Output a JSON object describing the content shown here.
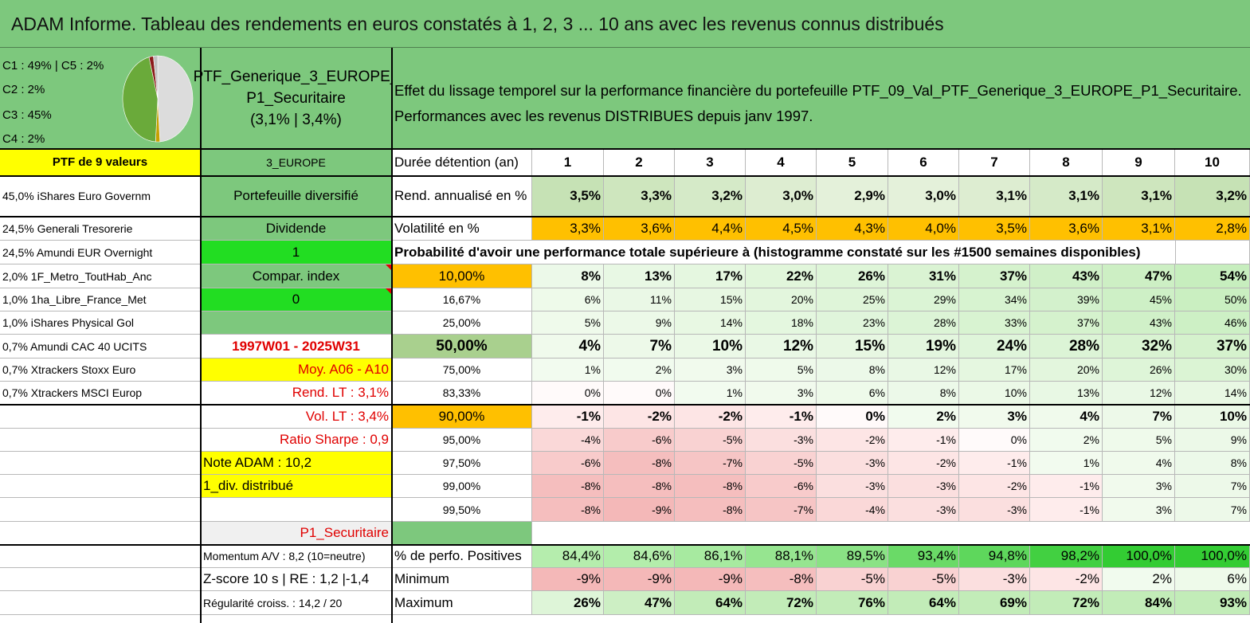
{
  "title": "ADAM Informe. Tableau des rendements en euros constatés à 1, 2, 3 ... 10 ans avec les revenus connus distribués",
  "pie": {
    "labels": [
      "C1 : 49% | C5 : 2%",
      "C2 : 2%",
      "C3 : 45%",
      "C4 : 2%"
    ],
    "slices": [
      {
        "value": 49,
        "color": "#dcdcdc"
      },
      {
        "value": 2,
        "color": "#c8a000"
      },
      {
        "value": 45,
        "color": "#6aaa3a"
      },
      {
        "value": 2,
        "color": "#8b1a1a"
      },
      {
        "value": 2,
        "color": "#c0c0c0"
      }
    ]
  },
  "portfolio": {
    "name_line1": "PTF_Generique_3_EUROPE_",
    "name_line2": "P1_Securitaire",
    "name_line3": "(3,1% | 3,4%)"
  },
  "description": {
    "line1": "Effet du lissage temporel sur la performance financière du portefeuille PTF_09_Val_PTF_Generique_3_EUROPE_P1_Securitaire.",
    "line2": "Performances avec les revenus DISTRIBUES depuis janv 1997."
  },
  "left_col": [
    "PTF de 9 valeurs",
    "45,0% iShares Euro Governm",
    "24,5% Generali Tresorerie",
    "24,5% Amundi EUR Overnight",
    "2,0% 1F_Metro_ToutHab_Anc",
    "1,0% 1ha_Libre_France_Met",
    "1,0% iShares Physical Gol",
    "0,7% Amundi CAC 40 UCITS",
    "0,7% Xtrackers Stoxx Euro",
    "0,7% Xtrackers MSCI Europ",
    "",
    "",
    "",
    "",
    "",
    "",
    "",
    "",
    ""
  ],
  "mid_col": [
    "3_EUROPE",
    "Portefeuille diversifié",
    "Dividende",
    "1",
    "Compar. index",
    "0",
    "",
    "1997W01 - 2025W31",
    "Moy. A06 - A10",
    "Rend. LT : 3,1%",
    "Vol. LT : 3,4%",
    "Ratio Sharpe : 0,9",
    "Note ADAM : 10,2",
    "1_div. distribué",
    "",
    "P1_Securitaire",
    "Momentum A/V : 8,2 (10=neutre)",
    "Z-score 10 s | RE : 1,2 |-1,4",
    "Régularité croiss. : 14,2 / 20"
  ],
  "header_row": {
    "label": "Durée détention (an)",
    "years": [
      "1",
      "2",
      "3",
      "4",
      "5",
      "6",
      "7",
      "8",
      "9",
      "10"
    ]
  },
  "rend_row": {
    "label": "Rend. annualisé en %",
    "values": [
      "3,5%",
      "3,3%",
      "3,2%",
      "3,0%",
      "2,9%",
      "3,0%",
      "3,1%",
      "3,1%",
      "3,1%",
      "3,2%"
    ]
  },
  "vol_row": {
    "label": "Volatilité en %",
    "values": [
      "3,3%",
      "3,6%",
      "4,4%",
      "4,5%",
      "4,3%",
      "4,0%",
      "3,5%",
      "3,6%",
      "3,1%",
      "2,8%"
    ]
  },
  "prob_header": "Probabilité d'avoir une performance totale supérieure à (histogramme constaté sur les #1500 semaines disponibles)",
  "prob_rows": [
    {
      "label": "10,00%",
      "values": [
        "8%",
        "13%",
        "17%",
        "22%",
        "26%",
        "31%",
        "37%",
        "43%",
        "47%",
        "54%"
      ]
    },
    {
      "label": "16,67%",
      "values": [
        "6%",
        "11%",
        "15%",
        "20%",
        "25%",
        "29%",
        "34%",
        "39%",
        "45%",
        "50%"
      ]
    },
    {
      "label": "25,00%",
      "values": [
        "5%",
        "9%",
        "14%",
        "18%",
        "23%",
        "28%",
        "33%",
        "37%",
        "43%",
        "46%"
      ]
    },
    {
      "label": "50,00%",
      "values": [
        "4%",
        "7%",
        "10%",
        "12%",
        "15%",
        "19%",
        "24%",
        "28%",
        "32%",
        "37%"
      ]
    },
    {
      "label": "75,00%",
      "values": [
        "1%",
        "2%",
        "3%",
        "5%",
        "8%",
        "12%",
        "17%",
        "20%",
        "26%",
        "30%"
      ]
    },
    {
      "label": "83,33%",
      "values": [
        "0%",
        "0%",
        "1%",
        "3%",
        "6%",
        "8%",
        "10%",
        "13%",
        "12%",
        "14%"
      ]
    },
    {
      "label": "90,00%",
      "values": [
        "-1%",
        "-2%",
        "-2%",
        "-1%",
        "0%",
        "2%",
        "3%",
        "4%",
        "7%",
        "10%"
      ]
    },
    {
      "label": "95,00%",
      "values": [
        "-4%",
        "-6%",
        "-5%",
        "-3%",
        "-2%",
        "-1%",
        "0%",
        "2%",
        "5%",
        "9%"
      ]
    },
    {
      "label": "97,50%",
      "values": [
        "-6%",
        "-8%",
        "-7%",
        "-5%",
        "-3%",
        "-2%",
        "-1%",
        "1%",
        "4%",
        "8%"
      ]
    },
    {
      "label": "99,00%",
      "values": [
        "-8%",
        "-8%",
        "-8%",
        "-6%",
        "-3%",
        "-3%",
        "-2%",
        "-1%",
        "3%",
        "7%"
      ]
    },
    {
      "label": "99,50%",
      "values": [
        "-8%",
        "-9%",
        "-8%",
        "-7%",
        "-4%",
        "-3%",
        "-3%",
        "-1%",
        "3%",
        "7%"
      ]
    }
  ],
  "pos_row": {
    "label": "% de perfo. Positives",
    "values": [
      "84,4%",
      "84,6%",
      "86,1%",
      "88,1%",
      "89,5%",
      "93,4%",
      "94,8%",
      "98,2%",
      "100,0%",
      "100,0%"
    ]
  },
  "min_row": {
    "label": "Minimum",
    "values": [
      "-9%",
      "-9%",
      "-9%",
      "-8%",
      "-5%",
      "-5%",
      "-3%",
      "-2%",
      "2%",
      "6%"
    ]
  },
  "max_row": {
    "label": "Maximum",
    "values": [
      "26%",
      "47%",
      "64%",
      "72%",
      "76%",
      "64%",
      "69%",
      "72%",
      "84%",
      "93%"
    ]
  },
  "colors": {
    "header_green": "#7dc87d",
    "yellow": "#ffff00",
    "bright_green": "#22dd22",
    "orange": "#ffc000",
    "red_text": "#e00000"
  }
}
